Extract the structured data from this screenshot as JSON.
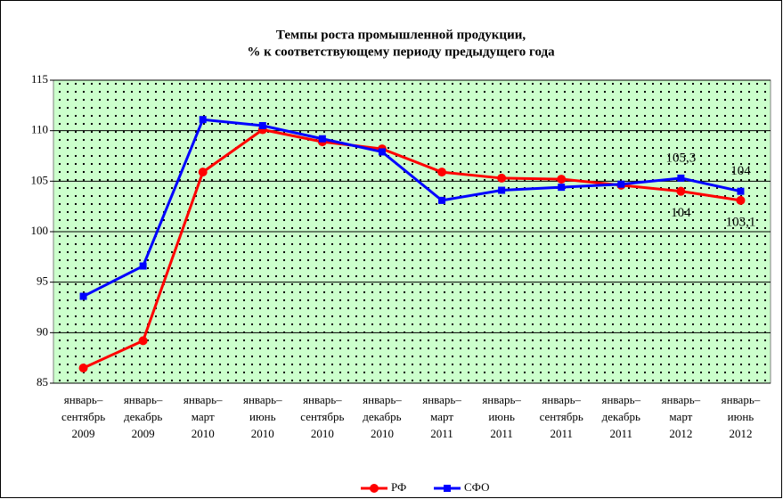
{
  "chart_data": {
    "type": "line",
    "title": [
      "Темпы роста промышленной продукции,",
      "% к соответствующему периоду предыдущего года"
    ],
    "categories": [
      [
        "январь–",
        "сентябрь",
        "2009"
      ],
      [
        "январь–",
        "декабрь",
        "2009"
      ],
      [
        "январь–",
        "март",
        "2010"
      ],
      [
        "январь–",
        "июнь",
        "2010"
      ],
      [
        "январь–",
        "сентябрь",
        "2010"
      ],
      [
        "январь–",
        "декабрь",
        "2010"
      ],
      [
        "январь–",
        "март",
        "2011"
      ],
      [
        "январь–",
        "июнь",
        "2011"
      ],
      [
        "январь–",
        "сентябрь",
        "2011"
      ],
      [
        "январь–",
        "декабрь",
        "2011"
      ],
      [
        "январь–",
        "март",
        "2012"
      ],
      [
        "январь–",
        "июнь",
        "2012"
      ]
    ],
    "series": [
      {
        "name": "РФ",
        "color": "#ff0000",
        "marker": "circle",
        "values": [
          86.5,
          89.2,
          105.9,
          110.1,
          108.9,
          108.2,
          105.9,
          105.3,
          105.2,
          104.6,
          104,
          103.1
        ],
        "value_labels": [
          null,
          null,
          null,
          null,
          null,
          null,
          null,
          null,
          null,
          null,
          "104",
          "103,1"
        ]
      },
      {
        "name": "СФО",
        "color": "#0000ff",
        "marker": "square",
        "values": [
          93.6,
          96.6,
          111.1,
          110.5,
          109.2,
          107.9,
          103.1,
          104.1,
          104.4,
          104.7,
          105.3,
          104
        ],
        "value_labels": [
          null,
          null,
          null,
          null,
          null,
          null,
          null,
          null,
          null,
          null,
          "105,3",
          "104"
        ]
      }
    ],
    "ylim": [
      85,
      115
    ],
    "yticks": [
      85,
      90,
      95,
      100,
      105,
      110,
      115
    ],
    "grid": true,
    "legend": "bottom"
  }
}
